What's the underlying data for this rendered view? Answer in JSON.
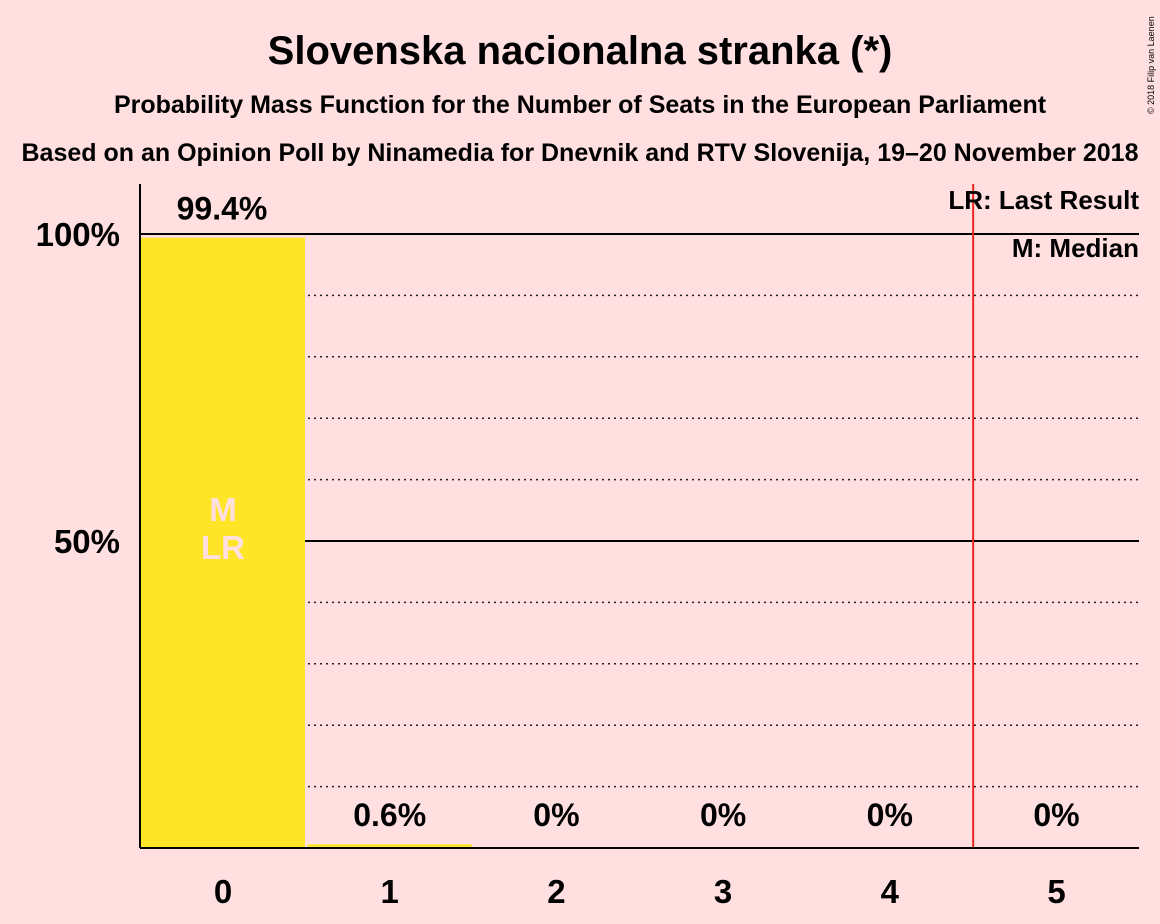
{
  "title": "Slovenska nacionalna stranka (*)",
  "subtitle": "Probability Mass Function for the Number of Seats in the European Parliament",
  "subtitle2": "Based on an Opinion Poll by Ninamedia for Dnevnik and RTV Slovenija, 19–20 November 2018",
  "copyright": "© 2018 Filip van Laenen",
  "legend": {
    "last_result": "LR: Last Result",
    "median": "M: Median"
  },
  "colors": {
    "background": "#ffdfe0",
    "bar": "#ffe528",
    "last_result_line": "#e8251f",
    "inbar_text": "#ffdfe0"
  },
  "chart_data": {
    "type": "bar",
    "categories": [
      "0",
      "1",
      "2",
      "3",
      "4",
      "5"
    ],
    "values": [
      99.4,
      0.6,
      0,
      0,
      0,
      0
    ],
    "value_labels": [
      "99.4%",
      "0.6%",
      "0%",
      "0%",
      "0%",
      "0%"
    ],
    "ylim": [
      0,
      100
    ],
    "yticks": [
      {
        "value": 50,
        "label": "50%"
      },
      {
        "value": 100,
        "label": "100%"
      }
    ],
    "dotted_gridlines": [
      10,
      20,
      30,
      40,
      60,
      70,
      80,
      90
    ],
    "median_seat": 0,
    "median_marker": "M",
    "last_result_seat": 0,
    "last_result_marker": "LR",
    "last_result_line_at": 4.5
  }
}
